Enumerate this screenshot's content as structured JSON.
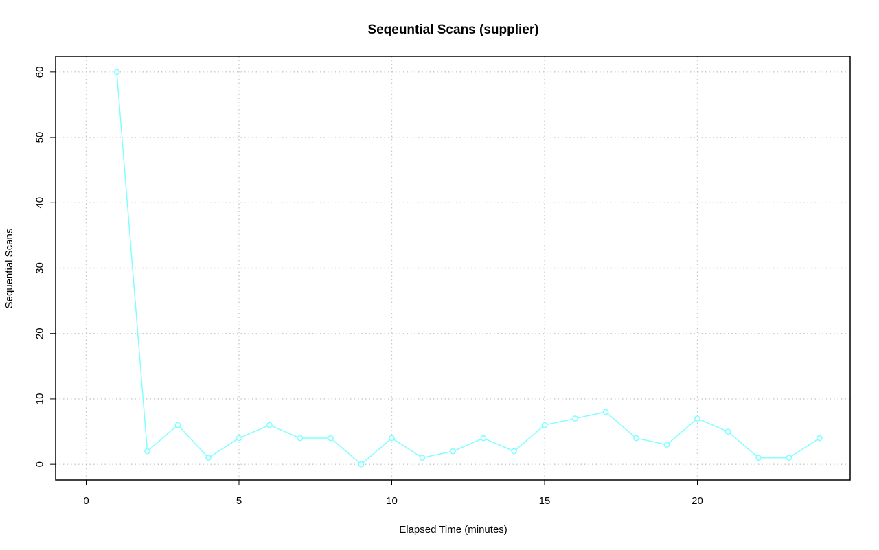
{
  "chart_data": {
    "type": "line",
    "title": "Seqeuntial Scans (supplier)",
    "xlabel": "Elapsed Time (minutes)",
    "ylabel": "Sequential Scans",
    "xlim": [
      -1,
      25
    ],
    "ylim": [
      -2.4,
      62.4
    ],
    "x_ticks": [
      0,
      5,
      10,
      15,
      20
    ],
    "y_ticks": [
      0,
      10,
      20,
      30,
      40,
      50,
      60
    ],
    "grid": true,
    "series_color": "#7fffff",
    "x": [
      1,
      2,
      3,
      4,
      5,
      6,
      7,
      8,
      9,
      10,
      11,
      12,
      13,
      14,
      15,
      16,
      17,
      18,
      19,
      20,
      21,
      22,
      23,
      24
    ],
    "y": [
      60,
      2,
      6,
      1,
      4,
      6,
      4,
      4,
      0,
      4,
      1,
      2,
      4,
      2,
      6,
      7,
      8,
      4,
      3,
      7,
      5,
      1,
      1,
      4
    ]
  }
}
